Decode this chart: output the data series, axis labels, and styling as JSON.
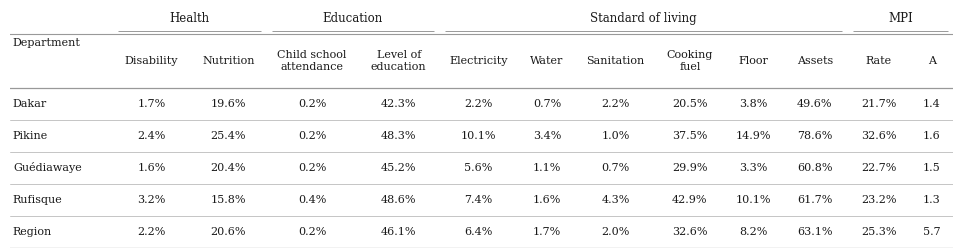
{
  "group_headers": [
    {
      "label": "Health",
      "cols": [
        1,
        2
      ]
    },
    {
      "label": "Education",
      "cols": [
        3,
        4
      ]
    },
    {
      "label": "Standard of living",
      "cols": [
        5,
        6,
        7,
        8,
        9,
        10
      ]
    },
    {
      "label": "MPI",
      "cols": [
        11,
        12
      ]
    }
  ],
  "col_headers": [
    "Department",
    "Disability",
    "Nutrition",
    "Child school\nattendance",
    "Level of\neducation",
    "Electricity",
    "Water",
    "Sanitation",
    "Cooking\nfuel",
    "Floor",
    "Assets",
    "Rate",
    "A"
  ],
  "rows": [
    [
      "Dakar",
      "1.7%",
      "19.6%",
      "0.2%",
      "42.3%",
      "2.2%",
      "0.7%",
      "2.2%",
      "20.5%",
      "3.8%",
      "49.6%",
      "21.7%",
      "1.4"
    ],
    [
      "Pikine",
      "2.4%",
      "25.4%",
      "0.2%",
      "48.3%",
      "10.1%",
      "3.4%",
      "1.0%",
      "37.5%",
      "14.9%",
      "78.6%",
      "32.6%",
      "1.6"
    ],
    [
      "Guédiawaye",
      "1.6%",
      "20.4%",
      "0.2%",
      "45.2%",
      "5.6%",
      "1.1%",
      "0.7%",
      "29.9%",
      "3.3%",
      "60.8%",
      "22.7%",
      "1.5"
    ],
    [
      "Rufisque",
      "3.2%",
      "15.8%",
      "0.4%",
      "48.6%",
      "7.4%",
      "1.6%",
      "4.3%",
      "42.9%",
      "10.1%",
      "61.7%",
      "23.2%",
      "1.3"
    ],
    [
      "Region",
      "2.2%",
      "20.6%",
      "0.2%",
      "46.1%",
      "6.4%",
      "1.7%",
      "2.0%",
      "32.6%",
      "8.2%",
      "63.1%",
      "25.3%",
      "5.7"
    ]
  ],
  "col_widths": [
    9.5,
    7.2,
    7.0,
    8.5,
    7.5,
    7.2,
    5.5,
    7.2,
    6.5,
    5.3,
    6.0,
    5.8,
    4.0
  ],
  "background_color": "#ffffff",
  "line_color": "#999999",
  "text_color": "#1a1a1a",
  "font_size": 8.0,
  "group_font_size": 8.5
}
